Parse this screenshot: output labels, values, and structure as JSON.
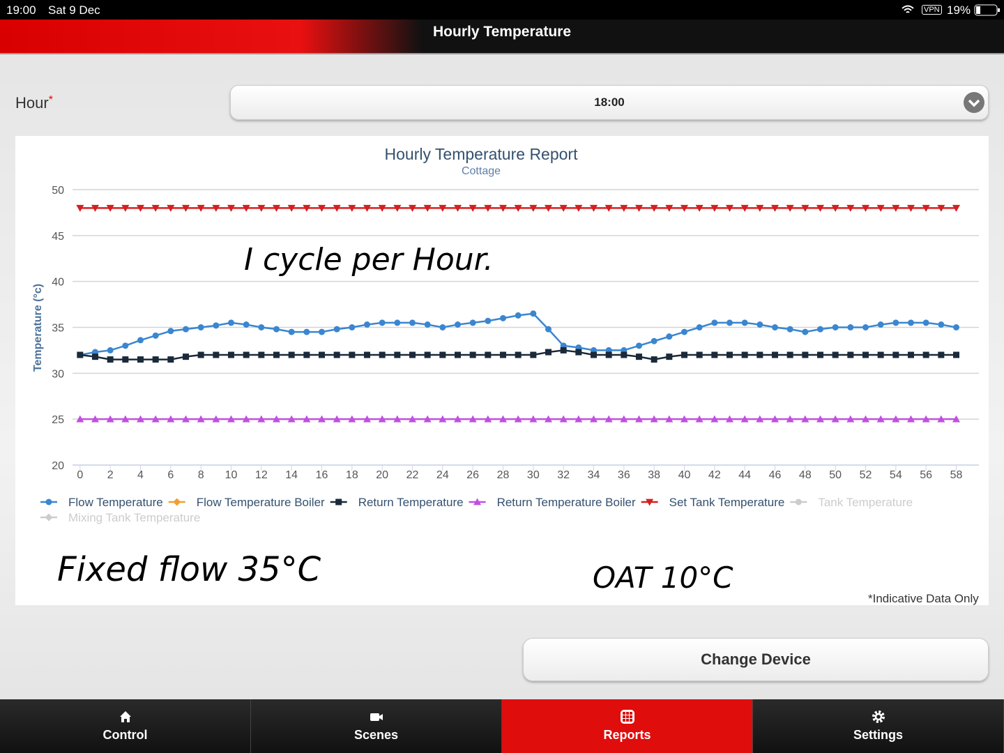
{
  "status_bar": {
    "time": "19:00",
    "date": "Sat 9 Dec",
    "vpn": "VPN",
    "battery": "19%"
  },
  "header": {
    "title": "Hourly Temperature"
  },
  "form": {
    "label": "Hour",
    "required": "*",
    "value": "18:00"
  },
  "chart_data": {
    "type": "line",
    "title": "Hourly Temperature Report",
    "subtitle": "Cottage",
    "y_label": "Temperature (°c)",
    "x": [
      0,
      1,
      2,
      3,
      4,
      5,
      6,
      7,
      8,
      9,
      10,
      11,
      12,
      13,
      14,
      15,
      16,
      17,
      18,
      19,
      20,
      21,
      22,
      23,
      24,
      25,
      26,
      27,
      28,
      29,
      30,
      31,
      32,
      33,
      34,
      35,
      36,
      37,
      38,
      39,
      40,
      41,
      42,
      43,
      44,
      45,
      46,
      47,
      48,
      49,
      50,
      51,
      52,
      53,
      54,
      55,
      56,
      57,
      58
    ],
    "xlim": [
      -0.5,
      59.5
    ],
    "xticks": [
      0,
      2,
      4,
      6,
      8,
      10,
      12,
      14,
      16,
      18,
      20,
      22,
      24,
      26,
      28,
      30,
      32,
      34,
      36,
      38,
      40,
      42,
      44,
      46,
      48,
      50,
      52,
      54,
      56,
      58
    ],
    "ylim": [
      20,
      50
    ],
    "yticks": [
      20,
      25,
      30,
      35,
      40,
      45,
      50
    ],
    "grid": true,
    "series": [
      {
        "name": "Flow Temperature",
        "color": "#3a86d0",
        "marker": "circle",
        "values": [
          32,
          32.3,
          32.5,
          33,
          33.6,
          34.1,
          34.6,
          34.8,
          35,
          35.2,
          35.5,
          35.3,
          35,
          34.8,
          34.5,
          34.5,
          34.5,
          34.8,
          35,
          35.3,
          35.5,
          35.5,
          35.5,
          35.3,
          35,
          35.3,
          35.5,
          35.7,
          36,
          36.3,
          36.5,
          34.8,
          33,
          32.8,
          32.5,
          32.5,
          32.5,
          33,
          33.5,
          34,
          34.5,
          35,
          35.5,
          35.5,
          35.5,
          35.3,
          35,
          34.8,
          34.5,
          34.8,
          35,
          35,
          35,
          35.3,
          35.5,
          35.5,
          35.5,
          35.3,
          35
        ]
      },
      {
        "name": "Flow Temperature Boiler",
        "color": "#f0a030",
        "marker": "diamond"
      },
      {
        "name": "Return Temperature",
        "color": "#1a2a3a",
        "marker": "square",
        "values": [
          32,
          31.8,
          31.5,
          31.5,
          31.5,
          31.5,
          31.5,
          31.8,
          32,
          32,
          32,
          32,
          32,
          32,
          32,
          32,
          32,
          32,
          32,
          32,
          32,
          32,
          32,
          32,
          32,
          32,
          32,
          32,
          32,
          32,
          32,
          32.3,
          32.5,
          32.3,
          32,
          32,
          32,
          31.8,
          31.5,
          31.8,
          32,
          32,
          32,
          32,
          32,
          32,
          32,
          32,
          32,
          32,
          32,
          32,
          32,
          32,
          32,
          32,
          32,
          32,
          32
        ]
      },
      {
        "name": "Return Temperature Boiler",
        "color": "#c050e0",
        "marker": "triangle",
        "values": [
          25,
          25,
          25,
          25,
          25,
          25,
          25,
          25,
          25,
          25,
          25,
          25,
          25,
          25,
          25,
          25,
          25,
          25,
          25,
          25,
          25,
          25,
          25,
          25,
          25,
          25,
          25,
          25,
          25,
          25,
          25,
          25,
          25,
          25,
          25,
          25,
          25,
          25,
          25,
          25,
          25,
          25,
          25,
          25,
          25,
          25,
          25,
          25,
          25,
          25,
          25,
          25,
          25,
          25,
          25,
          25,
          25,
          25,
          25
        ]
      },
      {
        "name": "Set Tank Temperature",
        "color": "#d42020",
        "marker": "triangle-down",
        "values": [
          48,
          48,
          48,
          48,
          48,
          48,
          48,
          48,
          48,
          48,
          48,
          48,
          48,
          48,
          48,
          48,
          48,
          48,
          48,
          48,
          48,
          48,
          48,
          48,
          48,
          48,
          48,
          48,
          48,
          48,
          48,
          48,
          48,
          48,
          48,
          48,
          48,
          48,
          48,
          48,
          48,
          48,
          48,
          48,
          48,
          48,
          48,
          48,
          48,
          48,
          48,
          48,
          48,
          48,
          48,
          48,
          48,
          48,
          48
        ]
      },
      {
        "name": "Tank Temperature",
        "color": "#cccccc",
        "marker": "circle",
        "hidden": true
      },
      {
        "name": "Mixing Tank Temperature",
        "color": "#cccccc",
        "marker": "diamond",
        "hidden": true
      }
    ],
    "annotations": [
      "I cycle per Hour.",
      "Fixed flow 35°C",
      "OAT 10°C"
    ],
    "footnote": "*Indicative Data Only"
  },
  "button": "Change Device",
  "nav": [
    "Control",
    "Scenes",
    "Reports",
    "Settings"
  ],
  "nav_active": 2
}
